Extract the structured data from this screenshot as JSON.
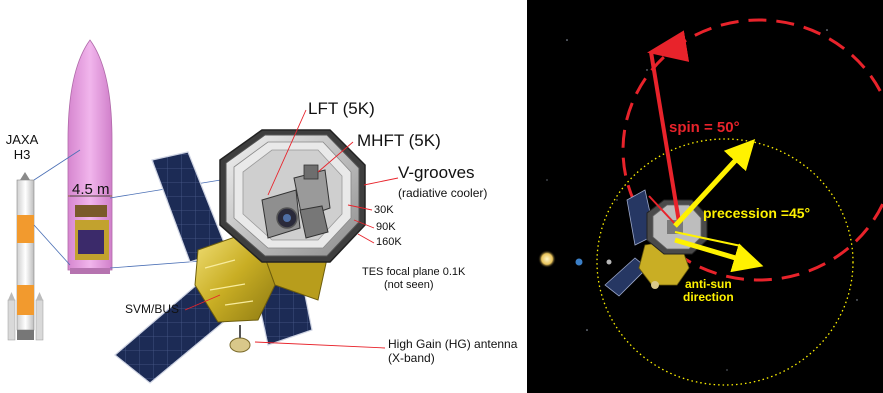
{
  "left": {
    "launcher_line1": "JAXA",
    "launcher_line2": "H3",
    "fairing_diameter": "4.5 m",
    "lft": "LFT (5K)",
    "mhft": "MHFT (5K)",
    "vgrooves": "V-grooves",
    "vgrooves_sub": "(radiative cooler)",
    "temp_30k": "30K",
    "temp_90k": "90K",
    "temp_160k": "160K",
    "tes_line1": "TES focal plane 0.1K",
    "tes_line2": "(not seen)",
    "svm": "SVM/BUS",
    "hga_line1": "High Gain (HG) antenna",
    "hga_line2": "(X-band)"
  },
  "right": {
    "spin": "spin = 50°",
    "precession": "precession =45°",
    "antisun_line1": "anti-sun",
    "antisun_line2": "direction"
  },
  "colors": {
    "spin_red": "#e8232b",
    "precession_yellow": "#fff200",
    "fairing_pink": "#e79ee0",
    "solar_panel": "#1c2b55",
    "gold_foil": "#d9c23a"
  }
}
